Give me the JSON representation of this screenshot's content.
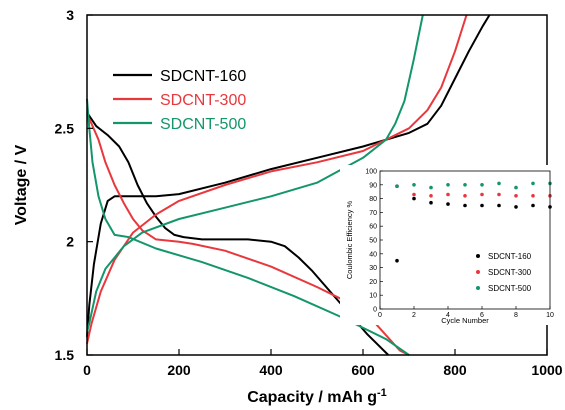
{
  "chart_data": [
    {
      "type": "line",
      "title": "",
      "xlabel": "Capacity / mAh g",
      "xlabel_sup": "-1",
      "ylabel": "Voltage / V",
      "xlim": [
        0,
        1000
      ],
      "ylim": [
        1.5,
        3.0
      ],
      "x_ticks": [
        "0",
        "200",
        "400",
        "600",
        "800",
        "1000"
      ],
      "y_ticks": [
        "1.5",
        "2",
        "2.5",
        "3"
      ],
      "grid": false,
      "legend_position": "top-left",
      "series": [
        {
          "name": "SDCNT-160",
          "color": "#000000",
          "curves": [
            [
              [
                0,
                2.57
              ],
              [
                20,
                2.51
              ],
              [
                45,
                2.47
              ],
              [
                70,
                2.42
              ],
              [
                90,
                2.35
              ],
              [
                110,
                2.25
              ],
              [
                130,
                2.17
              ],
              [
                150,
                2.11
              ],
              [
                170,
                2.06
              ],
              [
                190,
                2.03
              ],
              [
                210,
                2.02
              ],
              [
                250,
                2.01
              ],
              [
                300,
                2.01
              ],
              [
                350,
                2.01
              ],
              [
                400,
                2.0
              ],
              [
                430,
                1.98
              ],
              [
                460,
                1.93
              ],
              [
                490,
                1.87
              ],
              [
                520,
                1.8
              ],
              [
                550,
                1.73
              ],
              [
                580,
                1.66
              ],
              [
                610,
                1.59
              ],
              [
                640,
                1.53
              ],
              [
                655,
                1.5
              ]
            ],
            [
              [
                0,
                1.58
              ],
              [
                5,
                1.72
              ],
              [
                15,
                1.9
              ],
              [
                30,
                2.08
              ],
              [
                45,
                2.18
              ],
              [
                60,
                2.2
              ],
              [
                100,
                2.2
              ],
              [
                150,
                2.2
              ],
              [
                200,
                2.21
              ],
              [
                300,
                2.26
              ],
              [
                400,
                2.32
              ],
              [
                500,
                2.37
              ],
              [
                600,
                2.42
              ],
              [
                700,
                2.48
              ],
              [
                740,
                2.52
              ],
              [
                770,
                2.6
              ],
              [
                800,
                2.72
              ],
              [
                830,
                2.84
              ],
              [
                860,
                2.95
              ],
              [
                875,
                3.0
              ]
            ]
          ]
        },
        {
          "name": "SDCNT-300",
          "color": "#e8383d",
          "curves": [
            [
              [
                0,
                2.56
              ],
              [
                10,
                2.52
              ],
              [
                25,
                2.45
              ],
              [
                40,
                2.35
              ],
              [
                60,
                2.25
              ],
              [
                80,
                2.17
              ],
              [
                100,
                2.1
              ],
              [
                120,
                2.05
              ],
              [
                150,
                2.01
              ],
              [
                200,
                2.0
              ],
              [
                230,
                1.99
              ],
              [
                300,
                1.96
              ],
              [
                400,
                1.89
              ],
              [
                500,
                1.8
              ],
              [
                600,
                1.7
              ],
              [
                680,
                1.52
              ],
              [
                700,
                1.5
              ]
            ],
            [
              [
                0,
                1.55
              ],
              [
                10,
                1.64
              ],
              [
                30,
                1.78
              ],
              [
                60,
                1.92
              ],
              [
                100,
                2.04
              ],
              [
                150,
                2.12
              ],
              [
                200,
                2.18
              ],
              [
                300,
                2.25
              ],
              [
                400,
                2.31
              ],
              [
                500,
                2.35
              ],
              [
                600,
                2.4
              ],
              [
                650,
                2.45
              ],
              [
                700,
                2.5
              ],
              [
                740,
                2.58
              ],
              [
                770,
                2.68
              ],
              [
                800,
                2.84
              ],
              [
                825,
                3.0
              ]
            ]
          ]
        },
        {
          "name": "SDCNT-500",
          "color": "#14966a",
          "curves": [
            [
              [
                0,
                2.63
              ],
              [
                5,
                2.5
              ],
              [
                12,
                2.35
              ],
              [
                25,
                2.2
              ],
              [
                40,
                2.1
              ],
              [
                60,
                2.03
              ],
              [
                90,
                2.02
              ],
              [
                150,
                1.97
              ],
              [
                250,
                1.91
              ],
              [
                350,
                1.84
              ],
              [
                450,
                1.76
              ],
              [
                550,
                1.67
              ],
              [
                650,
                1.57
              ],
              [
                700,
                1.5
              ]
            ],
            [
              [
                0,
                1.6
              ],
              [
                5,
                1.64
              ],
              [
                20,
                1.78
              ],
              [
                40,
                1.88
              ],
              [
                80,
                1.98
              ],
              [
                120,
                2.04
              ],
              [
                200,
                2.1
              ],
              [
                300,
                2.15
              ],
              [
                400,
                2.2
              ],
              [
                500,
                2.26
              ],
              [
                600,
                2.37
              ],
              [
                650,
                2.45
              ],
              [
                670,
                2.52
              ],
              [
                690,
                2.62
              ],
              [
                710,
                2.8
              ],
              [
                730,
                3.0
              ]
            ]
          ]
        }
      ]
    },
    {
      "type": "scatter",
      "title": "",
      "xlabel": "Cycle Number",
      "ylabel": "Coulombic Efficiency %",
      "xlim": [
        0,
        10
      ],
      "ylim": [
        0,
        100
      ],
      "x_ticks": [
        "0",
        "2",
        "4",
        "6",
        "8",
        "10"
      ],
      "y_ticks": [
        "0",
        "10",
        "20",
        "30",
        "40",
        "50",
        "60",
        "70",
        "80",
        "90",
        "100"
      ],
      "legend_position": "bottom-right",
      "series": [
        {
          "name": "SDCNT-160",
          "color": "#000000",
          "x": [
            1,
            2,
            3,
            4,
            5,
            6,
            7,
            8,
            9,
            10
          ],
          "y": [
            35,
            80,
            77,
            76,
            75,
            75,
            75,
            74,
            75,
            74
          ]
        },
        {
          "name": "SDCNT-300",
          "color": "#e8383d",
          "x": [
            1,
            2,
            3,
            4,
            5,
            6,
            7,
            8,
            9,
            10
          ],
          "y": [
            89,
            83,
            82,
            83,
            82,
            83,
            83,
            82,
            82,
            82
          ]
        },
        {
          "name": "SDCNT-500",
          "color": "#14966a",
          "x": [
            1,
            2,
            3,
            4,
            5,
            6,
            7,
            8,
            9,
            10
          ],
          "y": [
            89,
            90,
            88,
            90,
            90,
            90,
            91,
            88,
            91,
            91
          ]
        }
      ]
    }
  ]
}
